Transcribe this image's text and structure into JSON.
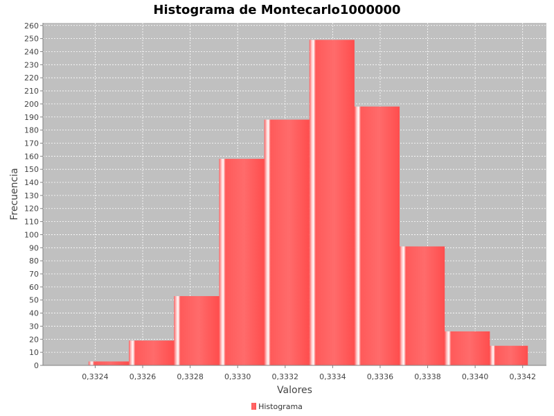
{
  "chart_data": {
    "type": "bar",
    "title": "Histograma de Montecarlo1000000",
    "xlabel": "Valores",
    "ylabel": "Frecuencia",
    "legend_position": "bottom",
    "grid": true,
    "x_ticks": [
      0.3324,
      0.3326,
      0.3328,
      0.333,
      0.3332,
      0.3334,
      0.3336,
      0.3338,
      0.334,
      0.3342
    ],
    "x_tick_labels": [
      "0,3324",
      "0,3326",
      "0,3328",
      "0,3330",
      "0,3332",
      "0,3334",
      "0,3336",
      "0,3338",
      "0,3340",
      "0,3342"
    ],
    "xlim": [
      0.33218,
      0.3343
    ],
    "ylim": [
      0,
      262
    ],
    "y_ticks": [
      0,
      10,
      20,
      30,
      40,
      50,
      60,
      70,
      80,
      90,
      100,
      110,
      120,
      130,
      140,
      150,
      160,
      170,
      180,
      190,
      200,
      210,
      220,
      230,
      240,
      250,
      260
    ],
    "bins": [
      {
        "start": 0.332372,
        "end": 0.332542,
        "value": 3
      },
      {
        "start": 0.332542,
        "end": 0.332732,
        "value": 19
      },
      {
        "start": 0.332732,
        "end": 0.332922,
        "value": 53
      },
      {
        "start": 0.332922,
        "end": 0.333112,
        "value": 158
      },
      {
        "start": 0.333112,
        "end": 0.333302,
        "value": 188
      },
      {
        "start": 0.333302,
        "end": 0.333492,
        "value": 249
      },
      {
        "start": 0.333492,
        "end": 0.333682,
        "value": 198
      },
      {
        "start": 0.333682,
        "end": 0.333872,
        "value": 91
      },
      {
        "start": 0.333872,
        "end": 0.334062,
        "value": 26
      },
      {
        "start": 0.334062,
        "end": 0.334222,
        "value": 15
      }
    ],
    "series": [
      {
        "name": "Histograma",
        "color": "#ff5555"
      }
    ],
    "colors": {
      "plot_background": "#c0c0c0",
      "gridline": "#ffffff",
      "bar": "#ff5555",
      "bar_highlight": "#ffffff"
    }
  }
}
